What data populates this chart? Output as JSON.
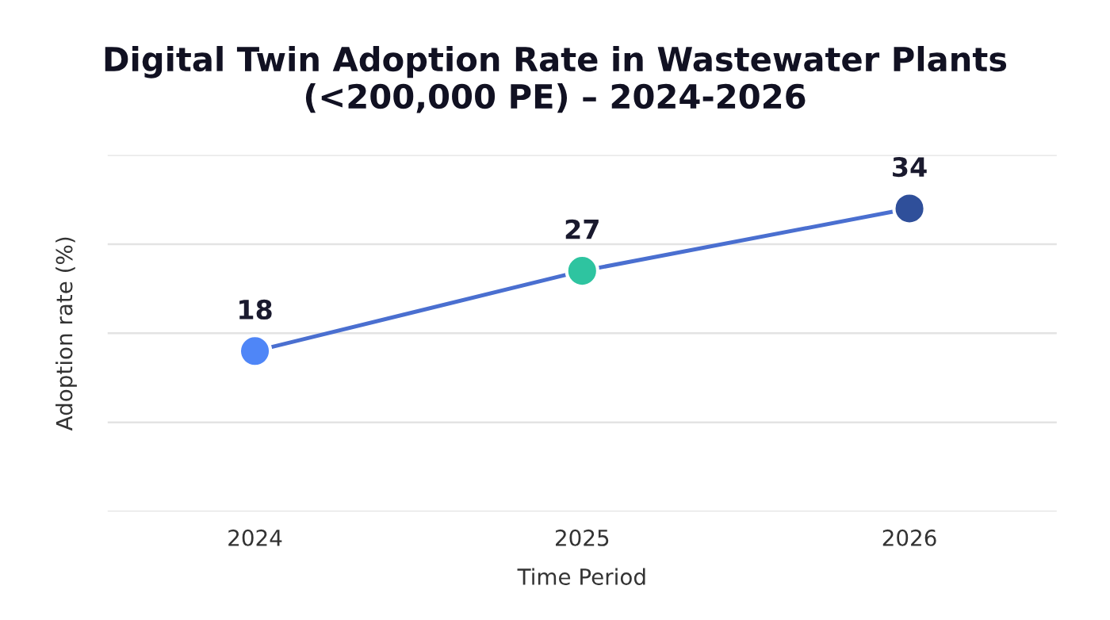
{
  "chart_data": {
    "type": "line",
    "title": "Digital Twin Adoption Rate in Wastewater Plants (<200,000 PE) – 2024-2026",
    "xlabel": "Time Period",
    "ylabel": "Adoption rate (%)",
    "categories": [
      "2024",
      "2025",
      "2026"
    ],
    "series": [
      {
        "color": "#4a6fd0",
        "colors": [
          "#4f86f7",
          "#2ec4a0",
          "#2f4f9a"
        ],
        "values": [
          18,
          27,
          34
        ]
      }
    ],
    "ylim": [
      0,
      40
    ],
    "yticks": [
      {
        "value": 0,
        "label": null
      },
      {
        "value": 10,
        "label": null
      },
      {
        "value": 20,
        "label": null
      },
      {
        "value": 30,
        "label": null
      },
      {
        "value": 40,
        "label": null
      }
    ],
    "tick_labels": "x",
    "grid": "y",
    "marker": "circle",
    "line_style": "solid",
    "data_labels": true
  }
}
